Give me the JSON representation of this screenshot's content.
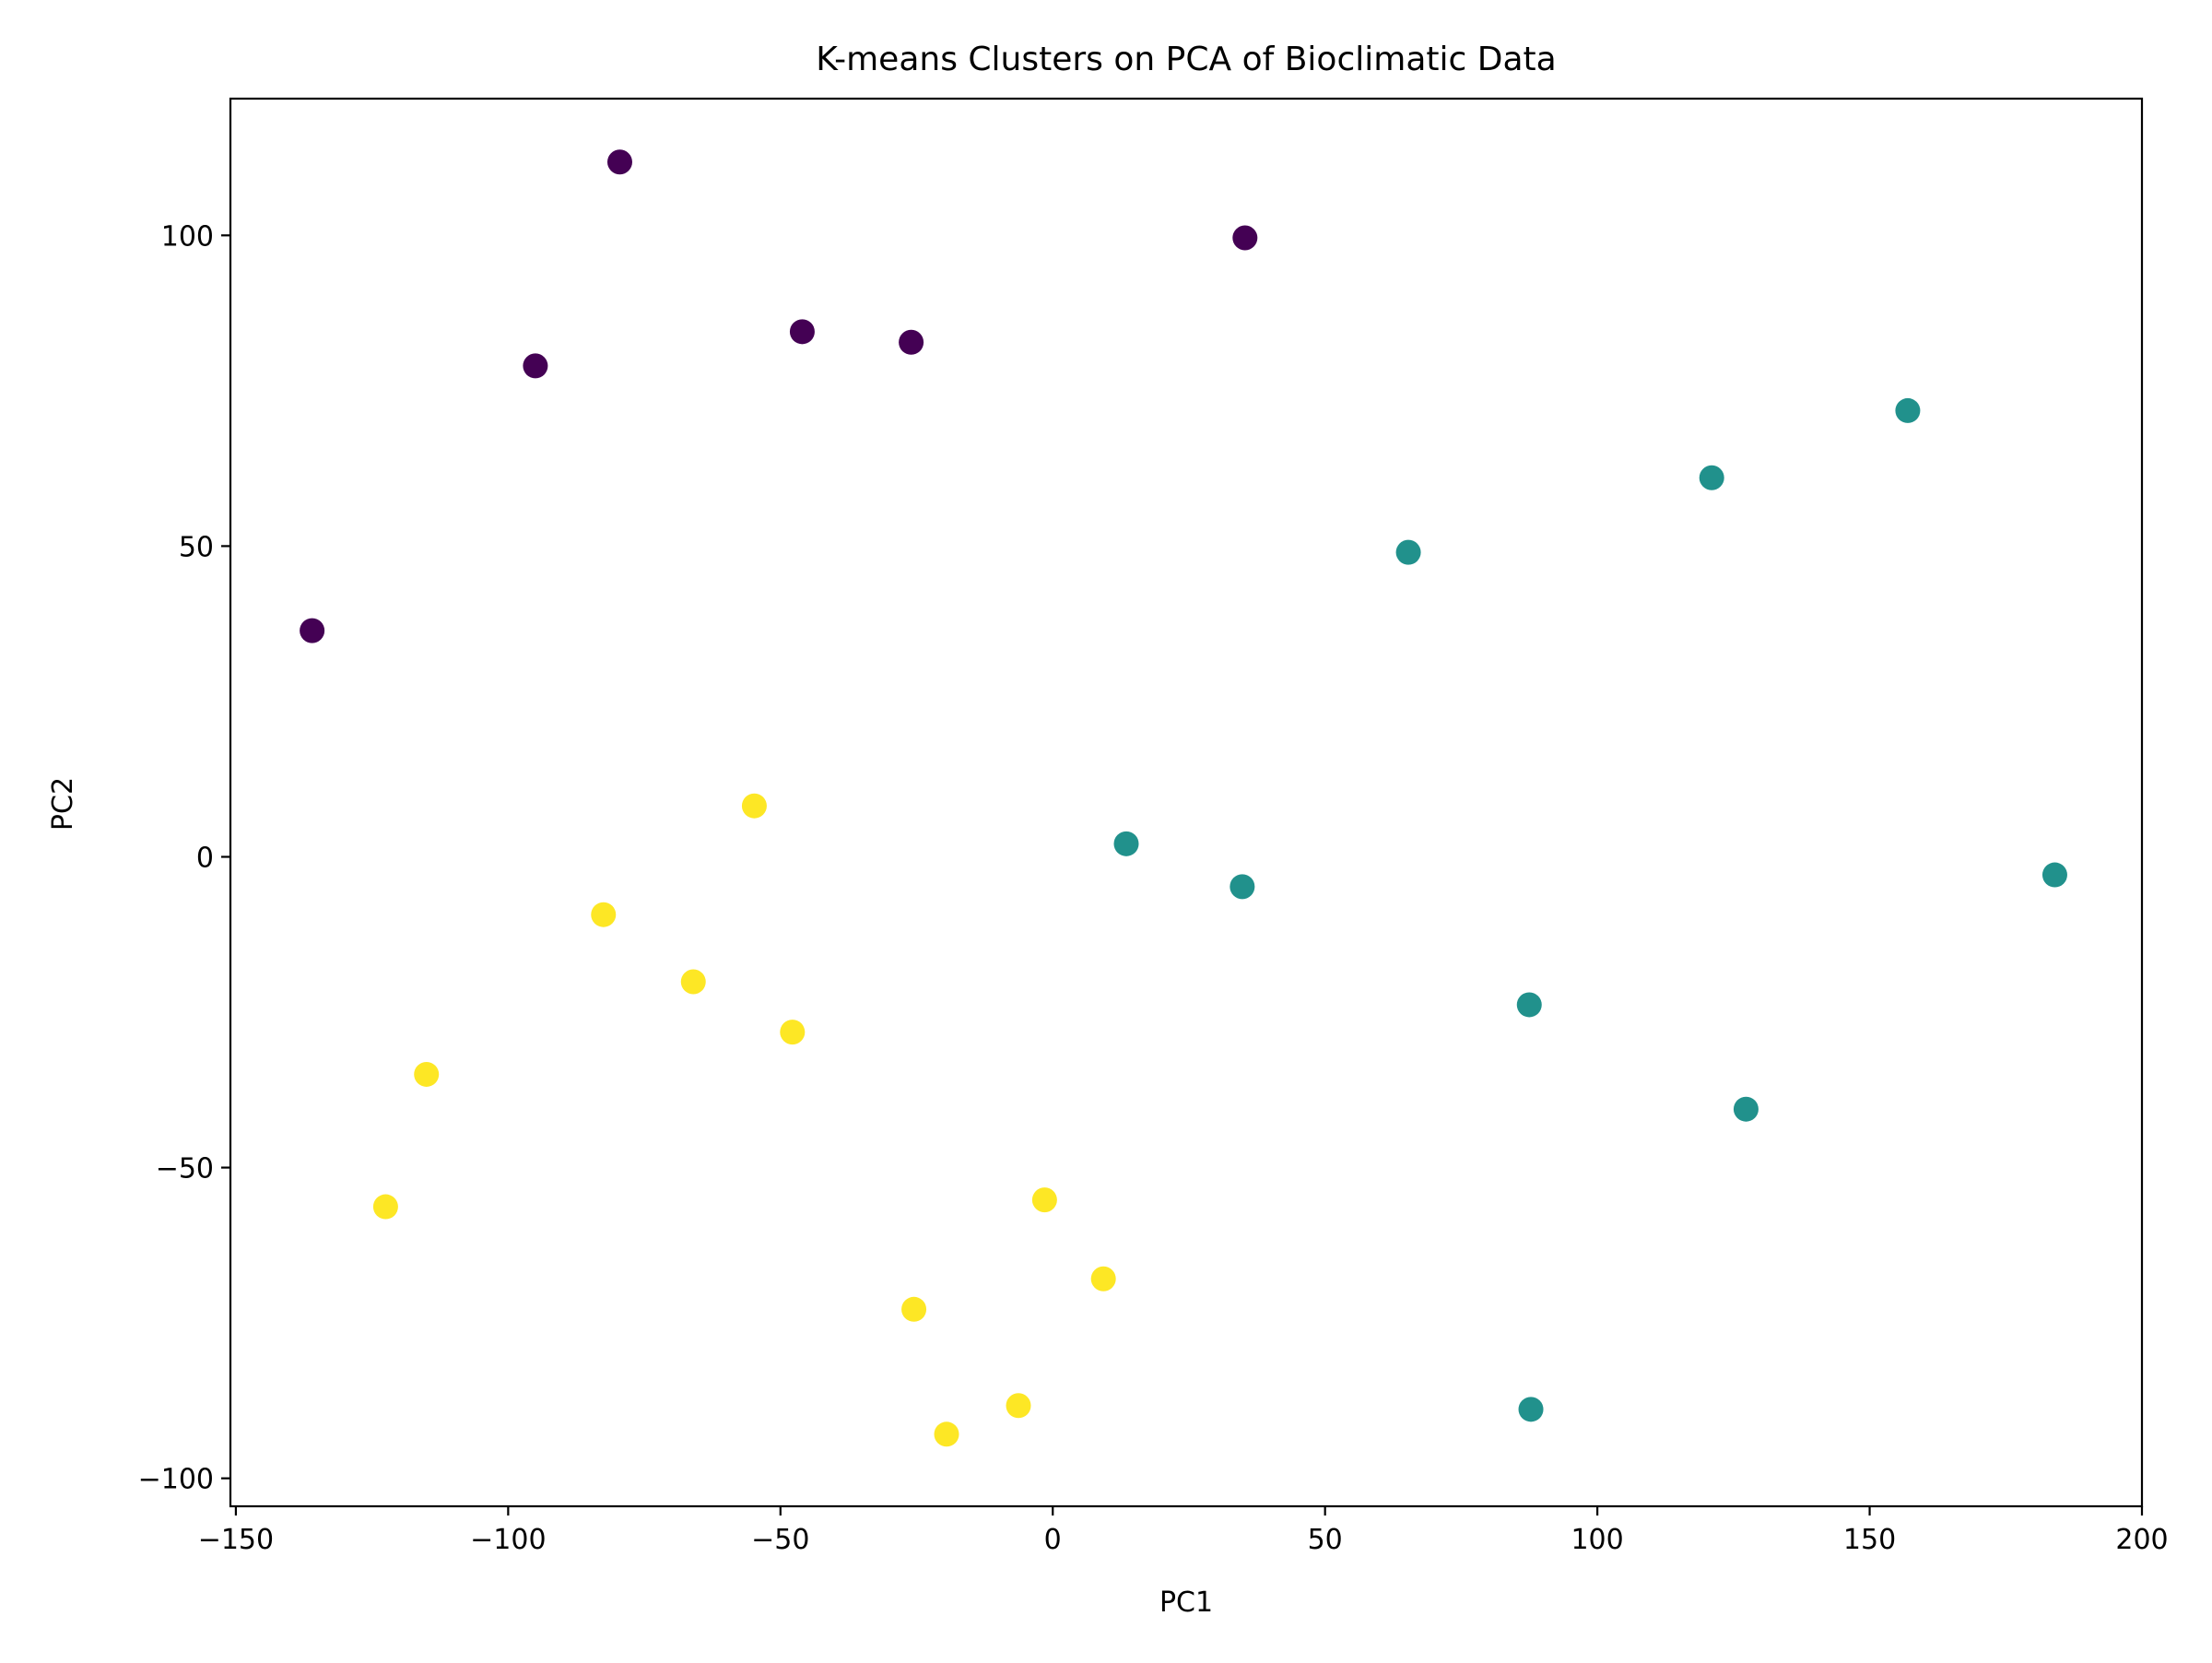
{
  "chart_data": {
    "type": "scatter",
    "title": "K-means Clusters on PCA of Bioclimatic Data",
    "xlabel": "PC1",
    "ylabel": "PC2",
    "xlim": [
      -151,
      200
    ],
    "ylim": [
      -104.5,
      122
    ],
    "x_ticks": [
      -150,
      -100,
      -50,
      0,
      50,
      100,
      150,
      200
    ],
    "x_tick_labels": [
      "−150",
      "−100",
      "−50",
      "0",
      "50",
      "100",
      "150",
      "200"
    ],
    "y_ticks": [
      -100,
      -50,
      0,
      50,
      100
    ],
    "y_tick_labels": [
      "−100",
      "−50",
      "0",
      "50",
      "100"
    ],
    "grid": false,
    "legend": "none",
    "series": [
      {
        "color": "#440154",
        "points": [
          {
            "x": -79.5,
            "y": 111.8
          },
          {
            "x": 35.3,
            "y": 99.6
          },
          {
            "x": -46.0,
            "y": 84.5
          },
          {
            "x": -26.0,
            "y": 82.8
          },
          {
            "x": -95.0,
            "y": 79.0
          },
          {
            "x": -136.0,
            "y": 36.4
          }
        ]
      },
      {
        "color": "#21918c",
        "points": [
          {
            "x": 157.0,
            "y": 71.8
          },
          {
            "x": 121.0,
            "y": 61.0
          },
          {
            "x": 65.3,
            "y": 49.0
          },
          {
            "x": 13.5,
            "y": 2.1
          },
          {
            "x": 34.8,
            "y": -4.8
          },
          {
            "x": 184.0,
            "y": -2.9
          },
          {
            "x": 87.5,
            "y": -23.8
          },
          {
            "x": 127.3,
            "y": -40.6
          },
          {
            "x": 87.8,
            "y": -88.9
          }
        ]
      },
      {
        "color": "#fde725",
        "points": [
          {
            "x": -54.8,
            "y": 8.2
          },
          {
            "x": -82.5,
            "y": -9.3
          },
          {
            "x": -66.0,
            "y": -20.1
          },
          {
            "x": -47.8,
            "y": -28.2
          },
          {
            "x": -115.0,
            "y": -35.0
          },
          {
            "x": -122.5,
            "y": -56.3
          },
          {
            "x": -1.5,
            "y": -55.2
          },
          {
            "x": 9.3,
            "y": -67.9
          },
          {
            "x": -25.5,
            "y": -72.8
          },
          {
            "x": -6.3,
            "y": -88.3
          },
          {
            "x": -19.5,
            "y": -92.9
          }
        ]
      }
    ]
  }
}
